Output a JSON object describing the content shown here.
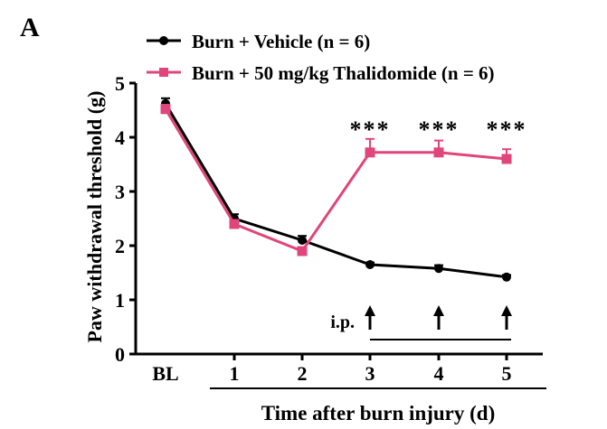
{
  "panel_label": "A",
  "chart_data": {
    "type": "line",
    "title": "",
    "xlabel": "Time after burn injury (d)",
    "ylabel": "Paw withdrawal threshold (g)",
    "categories": [
      "BL",
      "1",
      "2",
      "3",
      "4",
      "5"
    ],
    "yticks": [
      "0",
      "1",
      "2",
      "3",
      "4",
      "5"
    ],
    "ylim": [
      0,
      5
    ],
    "grid": false,
    "legend_position": "top-left",
    "series": [
      {
        "name": "Burn + Vehicle (n = 6)",
        "color": "#000000",
        "marker": "circle",
        "values": [
          4.62,
          2.5,
          2.1,
          1.65,
          1.58,
          1.42
        ],
        "errors": [
          0.1,
          0.08,
          0.08,
          0.04,
          0.06,
          0.04
        ]
      },
      {
        "name": "Burn + 50 mg/kg Thalidomide (n = 6)",
        "color": "#e0457b",
        "marker": "square",
        "values": [
          4.52,
          2.4,
          1.9,
          3.72,
          3.72,
          3.6
        ],
        "errors": [
          0.08,
          0.06,
          0.06,
          0.25,
          0.22,
          0.18
        ]
      }
    ],
    "annotations": {
      "significance": [
        {
          "category": "3",
          "text": "***"
        },
        {
          "category": "4",
          "text": "***"
        },
        {
          "category": "5",
          "text": "***"
        }
      ],
      "injection_label": "i.p.",
      "injection_days": [
        "3",
        "4",
        "5"
      ]
    }
  }
}
